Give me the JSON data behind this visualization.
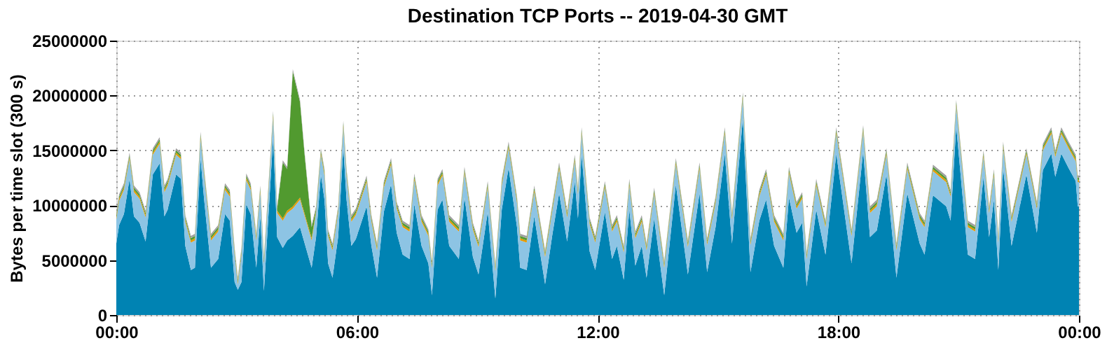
{
  "chart_data": {
    "type": "area",
    "stacked": true,
    "title": "Destination TCP Ports -- 2019-04-30 GMT",
    "ylabel": "Bytes per time slot (300 s)",
    "x": [
      0,
      0.07,
      0.19,
      0.33,
      0.44,
      0.58,
      0.73,
      0.91,
      1.08,
      1.2,
      1.28,
      1.49,
      1.61,
      1.72,
      1.86,
      1.96,
      2.1,
      2.19,
      2.36,
      2.54,
      2.71,
      2.83,
      2.95,
      3.03,
      3.12,
      3.24,
      3.35,
      3.49,
      3.59,
      3.68,
      3.91,
      4.01,
      4.15,
      4.26,
      4.4,
      4.58,
      4.69,
      4.87,
      4.98,
      5.1,
      5.19,
      5.28,
      5.39,
      5.53,
      5.66,
      5.74,
      5.86,
      5.97,
      6.24,
      6.36,
      6.5,
      6.67,
      6.85,
      6.99,
      7.14,
      7.31,
      7.43,
      7.61,
      7.78,
      7.87,
      8.01,
      8.13,
      8.3,
      8.54,
      8.68,
      8.89,
      9.03,
      9.26,
      9.45,
      9.61,
      9.78,
      9.99,
      10.07,
      10.23,
      10.42,
      10.69,
      10.87,
      11.04,
      11.24,
      11.43,
      11.51,
      11.6,
      11.8,
      11.94,
      12.18,
      12.36,
      12.48,
      12.65,
      12.79,
      12.94,
      13.1,
      13.22,
      13.41,
      13.66,
      13.95,
      14.25,
      14.54,
      14.73,
      14.94,
      15.17,
      15.35,
      15.62,
      15.81,
      16.03,
      16.2,
      16.4,
      16.63,
      16.77,
      16.96,
      17.1,
      17.21,
      17.45,
      17.68,
      17.95,
      18.33,
      18.62,
      18.79,
      18.96,
      19.2,
      19.45,
      19.72,
      20.03,
      20.15,
      20.36,
      20.69,
      20.8,
      20.94,
      21.23,
      21.41,
      21.62,
      21.76,
      21.88,
      21.99,
      22.11,
      22.32,
      22.69,
      22.95,
      23.1,
      23.31,
      23.41,
      23.56,
      23.74,
      23.92,
      23.97,
      24
    ],
    "series": [
      {
        "color": "#0083b3",
        "values": [
          6500000.0,
          8200000.0,
          9200000.0,
          12400000.0,
          9000000.0,
          8400000.0,
          6700000.0,
          12800000.0,
          13800000.0,
          9000000.0,
          9600000.0,
          12800000.0,
          12400000.0,
          6300000.0,
          4100000.0,
          4300000.0,
          14300000.0,
          10500000.0,
          4300000.0,
          5100000.0,
          9200000.0,
          8600000.0,
          3000000.0,
          2300000.0,
          3000000.0,
          10100000.0,
          9200000.0,
          4300000.0,
          9000000.0,
          2200000.0,
          16200000.0,
          7100000.0,
          6100000.0,
          6800000.0,
          7200000.0,
          8000000.0,
          6600000.0,
          4300000.0,
          7100000.0,
          12800000.0,
          10500000.0,
          4700000.0,
          3400000.0,
          7100000.0,
          15300000.0,
          10500000.0,
          6300000.0,
          6900000.0,
          9900000.0,
          6300000.0,
          3400000.0,
          9400000.0,
          11900000.0,
          7500000.0,
          5500000.0,
          5100000.0,
          10100000.0,
          6300000.0,
          4700000.0,
          1800000.0,
          9600000.0,
          10500000.0,
          6300000.0,
          5100000.0,
          10700000.0,
          5300000.0,
          3700000.0,
          9400000.0,
          1500000.0,
          9600000.0,
          13400000.0,
          8000000.0,
          4300000.0,
          4100000.0,
          9000000.0,
          2800000.0,
          7300000.0,
          11100000.0,
          6700000.0,
          12200000.0,
          8800000.0,
          14700000.0,
          5800000.0,
          4100000.0,
          9400000.0,
          5100000.0,
          6300000.0,
          3200000.0,
          9600000.0,
          4500000.0,
          6300000.0,
          3400000.0,
          8800000.0,
          1800000.0,
          11900000.0,
          3700000.0,
          11100000.0,
          3900000.0,
          8000000.0,
          14700000.0,
          6500000.0,
          17900000.0,
          3900000.0,
          8600000.0,
          10500000.0,
          6300000.0,
          4300000.0,
          10700000.0,
          7500000.0,
          8400000.0,
          2600000.0,
          9600000.0,
          5500000.0,
          14700000.0,
          4700000.0,
          14900000.0,
          7100000.0,
          7700000.0,
          12800000.0,
          3400000.0,
          11100000.0,
          6500000.0,
          5500000.0,
          10900000.0,
          9900000.0,
          8600000.0,
          17200000.0,
          5500000.0,
          5100000.0,
          12600000.0,
          7100000.0,
          10500000.0,
          4100000.0,
          13400000.0,
          6300000.0,
          12800000.0,
          7500000.0,
          13200000.0,
          14700000.0,
          12600000.0,
          14700000.0,
          13400000.0,
          12200000.0,
          9900000.0,
          9900000.0
        ]
      },
      {
        "color": "#8dc4e4",
        "values": [
          2200000.0,
          2200000.0,
          2200000.0,
          1800000.0,
          2200000.0,
          2200000.0,
          2200000.0,
          1800000.0,
          1800000.0,
          2200000.0,
          2200000.0,
          1800000.0,
          1800000.0,
          2200000.0,
          2500000.0,
          2500000.0,
          1800000.0,
          2200000.0,
          2500000.0,
          2500000.0,
          2200000.0,
          2200000.0,
          2500000.0,
          500000.0,
          2500000.0,
          2200000.0,
          2200000.0,
          2500000.0,
          2200000.0,
          2500000.0,
          1800000.0,
          2200000.0,
          2500000.0,
          2500000.0,
          2500000.0,
          2500000.0,
          2500000.0,
          2500000.0,
          2200000.0,
          1800000.0,
          2200000.0,
          2500000.0,
          2500000.0,
          2200000.0,
          1800000.0,
          2200000.0,
          2200000.0,
          2200000.0,
          2200000.0,
          2200000.0,
          2500000.0,
          2200000.0,
          1800000.0,
          2200000.0,
          2500000.0,
          2500000.0,
          2200000.0,
          2200000.0,
          2500000.0,
          2500000.0,
          2200000.0,
          2200000.0,
          2200000.0,
          2500000.0,
          2200000.0,
          2500000.0,
          2500000.0,
          2200000.0,
          2500000.0,
          2200000.0,
          1800000.0,
          2200000.0,
          2500000.0,
          2500000.0,
          2200000.0,
          2500000.0,
          2200000.0,
          2200000.0,
          2200000.0,
          1800000.0,
          2200000.0,
          1800000.0,
          2500000.0,
          2500000.0,
          2200000.0,
          2500000.0,
          2200000.0,
          2500000.0,
          2200000.0,
          2500000.0,
          2200000.0,
          2500000.0,
          2200000.0,
          2500000.0,
          1800000.0,
          2500000.0,
          2200000.0,
          2500000.0,
          2200000.0,
          1800000.0,
          2200000.0,
          1800000.0,
          2500000.0,
          2200000.0,
          2200000.0,
          2200000.0,
          2500000.0,
          2200000.0,
          2200000.0,
          2200000.0,
          2500000.0,
          2200000.0,
          2500000.0,
          1800000.0,
          2500000.0,
          1800000.0,
          2200000.0,
          2200000.0,
          1800000.0,
          2500000.0,
          2200000.0,
          2200000.0,
          2500000.0,
          2200000.0,
          2200000.0,
          2200000.0,
          1800000.0,
          2500000.0,
          2500000.0,
          1800000.0,
          2200000.0,
          2200000.0,
          2500000.0,
          1800000.0,
          2200000.0,
          1800000.0,
          2200000.0,
          1800000.0,
          1800000.0,
          1800000.0,
          1800000.0,
          1800000.0,
          1800000.0,
          2200000.0,
          2200000.0
        ]
      },
      {
        "color": "#e69a00",
        "values": [
          200000.0,
          200000.0,
          200000.0,
          200000.0,
          200000.0,
          200000.0,
          200000.0,
          200000.0,
          200000.0,
          200000.0,
          200000.0,
          200000.0,
          200000.0,
          200000.0,
          200000.0,
          200000.0,
          200000.0,
          200000.0,
          200000.0,
          200000.0,
          200000.0,
          200000.0,
          200000.0,
          200000.0,
          200000.0,
          200000.0,
          200000.0,
          200000.0,
          200000.0,
          200000.0,
          200000.0,
          200000.0,
          200000.0,
          200000.0,
          200000.0,
          200000.0,
          200000.0,
          200000.0,
          200000.0,
          200000.0,
          200000.0,
          200000.0,
          200000.0,
          200000.0,
          200000.0,
          200000.0,
          200000.0,
          200000.0,
          200000.0,
          200000.0,
          200000.0,
          200000.0,
          200000.0,
          200000.0,
          200000.0,
          200000.0,
          200000.0,
          200000.0,
          200000.0,
          200000.0,
          200000.0,
          200000.0,
          200000.0,
          200000.0,
          200000.0,
          200000.0,
          200000.0,
          200000.0,
          200000.0,
          200000.0,
          200000.0,
          200000.0,
          200000.0,
          200000.0,
          200000.0,
          200000.0,
          200000.0,
          200000.0,
          200000.0,
          200000.0,
          200000.0,
          200000.0,
          200000.0,
          200000.0,
          200000.0,
          200000.0,
          200000.0,
          200000.0,
          200000.0,
          200000.0,
          200000.0,
          200000.0,
          200000.0,
          200000.0,
          200000.0,
          200000.0,
          200000.0,
          200000.0,
          200000.0,
          200000.0,
          200000.0,
          200000.0,
          200000.0,
          200000.0,
          200000.0,
          200000.0,
          200000.0,
          200000.0,
          200000.0,
          200000.0,
          200000.0,
          200000.0,
          200000.0,
          200000.0,
          200000.0,
          200000.0,
          200000.0,
          200000.0,
          200000.0,
          200000.0,
          200000.0,
          200000.0,
          200000.0,
          200000.0,
          200000.0,
          200000.0,
          200000.0,
          200000.0,
          200000.0,
          200000.0,
          200000.0,
          200000.0,
          200000.0,
          200000.0,
          200000.0,
          200000.0,
          200000.0,
          200000.0,
          200000.0,
          200000.0,
          200000.0,
          200000.0,
          200000.0,
          200000.0,
          200000.0
        ]
      },
      {
        "color": "#519a2f",
        "values": [
          200000.0,
          200000.0,
          200000.0,
          200000.0,
          200000.0,
          200000.0,
          200000.0,
          200000.0,
          200000.0,
          200000.0,
          200000.0,
          200000.0,
          200000.0,
          200000.0,
          200000.0,
          200000.0,
          200000.0,
          200000.0,
          200000.0,
          200000.0,
          200000.0,
          200000.0,
          200000.0,
          200000.0,
          200000.0,
          200000.0,
          200000.0,
          200000.0,
          200000.0,
          200000.0,
          200000.0,
          200000.0,
          5100000.0,
          3800000.0,
          12300000.0,
          8700000.0,
          5500000.0,
          1000000.0,
          200000.0,
          200000.0,
          200000.0,
          200000.0,
          200000.0,
          200000.0,
          200000.0,
          200000.0,
          200000.0,
          200000.0,
          200000.0,
          200000.0,
          200000.0,
          200000.0,
          200000.0,
          200000.0,
          200000.0,
          200000.0,
          200000.0,
          200000.0,
          200000.0,
          200000.0,
          200000.0,
          200000.0,
          200000.0,
          200000.0,
          200000.0,
          200000.0,
          200000.0,
          200000.0,
          200000.0,
          200000.0,
          200000.0,
          200000.0,
          200000.0,
          200000.0,
          200000.0,
          200000.0,
          200000.0,
          200000.0,
          200000.0,
          200000.0,
          200000.0,
          200000.0,
          200000.0,
          200000.0,
          200000.0,
          200000.0,
          200000.0,
          200000.0,
          200000.0,
          200000.0,
          200000.0,
          200000.0,
          200000.0,
          200000.0,
          200000.0,
          200000.0,
          200000.0,
          200000.0,
          200000.0,
          200000.0,
          200000.0,
          200000.0,
          200000.0,
          200000.0,
          200000.0,
          200000.0,
          200000.0,
          200000.0,
          200000.0,
          200000.0,
          200000.0,
          200000.0,
          200000.0,
          200000.0,
          200000.0,
          200000.0,
          200000.0,
          200000.0,
          200000.0,
          200000.0,
          200000.0,
          200000.0,
          200000.0,
          200000.0,
          200000.0,
          200000.0,
          200000.0,
          200000.0,
          200000.0,
          200000.0,
          200000.0,
          200000.0,
          200000.0,
          200000.0,
          200000.0,
          200000.0,
          200000.0,
          200000.0,
          200000.0,
          200000.0,
          200000.0,
          200000.0,
          200000.0,
          200000.0,
          200000.0
        ]
      },
      {
        "color": "#a0a0a0",
        "values": [
          200000.0,
          200000.0,
          200000.0,
          200000.0,
          200000.0,
          200000.0,
          200000.0,
          200000.0,
          200000.0,
          200000.0,
          200000.0,
          200000.0,
          200000.0,
          200000.0,
          200000.0,
          200000.0,
          200000.0,
          200000.0,
          200000.0,
          200000.0,
          200000.0,
          200000.0,
          200000.0,
          200000.0,
          200000.0,
          200000.0,
          200000.0,
          200000.0,
          200000.0,
          200000.0,
          200000.0,
          200000.0,
          200000.0,
          200000.0,
          200000.0,
          200000.0,
          200000.0,
          200000.0,
          200000.0,
          200000.0,
          200000.0,
          200000.0,
          200000.0,
          200000.0,
          200000.0,
          200000.0,
          200000.0,
          200000.0,
          200000.0,
          200000.0,
          200000.0,
          200000.0,
          200000.0,
          200000.0,
          200000.0,
          200000.0,
          200000.0,
          200000.0,
          200000.0,
          200000.0,
          200000.0,
          200000.0,
          200000.0,
          200000.0,
          200000.0,
          200000.0,
          200000.0,
          200000.0,
          200000.0,
          200000.0,
          200000.0,
          200000.0,
          200000.0,
          200000.0,
          200000.0,
          200000.0,
          200000.0,
          200000.0,
          200000.0,
          200000.0,
          200000.0,
          200000.0,
          200000.0,
          200000.0,
          200000.0,
          200000.0,
          200000.0,
          200000.0,
          200000.0,
          200000.0,
          200000.0,
          200000.0,
          200000.0,
          200000.0,
          200000.0,
          200000.0,
          200000.0,
          200000.0,
          200000.0,
          200000.0,
          200000.0,
          200000.0,
          200000.0,
          200000.0,
          200000.0,
          200000.0,
          200000.0,
          200000.0,
          200000.0,
          200000.0,
          200000.0,
          200000.0,
          200000.0,
          200000.0,
          200000.0,
          200000.0,
          200000.0,
          200000.0,
          200000.0,
          200000.0,
          200000.0,
          200000.0,
          200000.0,
          200000.0,
          200000.0,
          200000.0,
          200000.0,
          200000.0,
          200000.0,
          200000.0,
          200000.0,
          200000.0,
          200000.0,
          200000.0,
          200000.0,
          200000.0,
          200000.0,
          200000.0,
          200000.0,
          200000.0,
          200000.0,
          200000.0,
          200000.0,
          200000.0,
          200000.0
        ]
      }
    ],
    "xlim": [
      0,
      24
    ],
    "xticks": [
      {
        "value": 0,
        "label": "00:00"
      },
      {
        "value": 6,
        "label": "06:00"
      },
      {
        "value": 12,
        "label": "12:00"
      },
      {
        "value": 18,
        "label": "18:00"
      },
      {
        "value": 24,
        "label": "00:00"
      }
    ],
    "ylim": [
      0,
      25000000
    ],
    "yticks": [
      0,
      5000000,
      10000000,
      15000000,
      20000000,
      25000000
    ],
    "grid": true
  }
}
